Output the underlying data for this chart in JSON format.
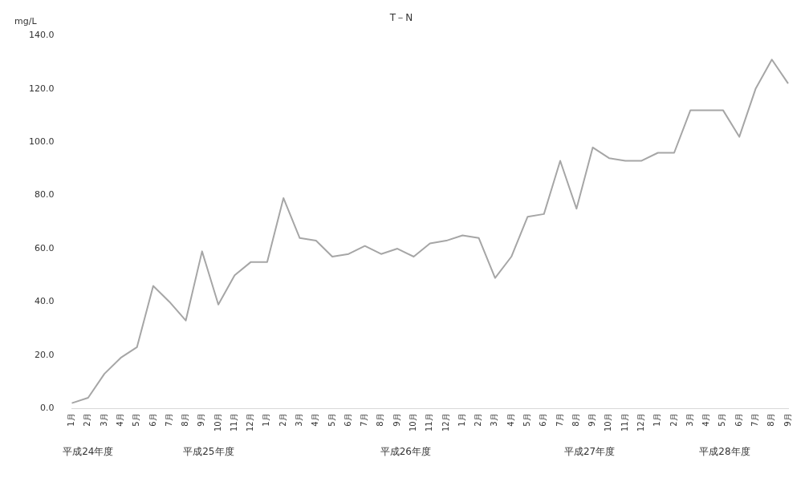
{
  "chart_data": {
    "type": "line",
    "title": "T－N",
    "ylabel": "mg/L",
    "categories": [
      "1月",
      "2月",
      "3月",
      "4月",
      "5月",
      "6月",
      "7月",
      "8月",
      "9月",
      "10月",
      "11月",
      "12月",
      "1月",
      "2月",
      "3月",
      "4月",
      "5月",
      "6月",
      "7月",
      "8月",
      "9月",
      "10月",
      "11月",
      "12月",
      "1月",
      "2月",
      "3月",
      "4月",
      "5月",
      "6月",
      "7月",
      "8月",
      "9月",
      "10月",
      "11月",
      "12月",
      "1月",
      "2月",
      "3月",
      "4月",
      "5月",
      "6月",
      "7月",
      "8月",
      "9月"
    ],
    "series": [
      {
        "color": "#a6a6a6",
        "values": [
          2,
          4,
          13,
          19,
          23,
          46,
          40,
          33,
          59,
          39,
          50,
          55,
          55,
          79,
          64,
          63,
          57,
          58,
          61,
          58,
          60,
          57,
          62,
          63,
          65,
          64,
          49,
          57,
          72,
          73,
          93,
          75,
          98,
          94,
          93,
          93,
          96,
          96,
          112,
          112,
          112,
          102,
          120,
          131,
          122
        ]
      }
    ],
    "ylim": [
      0,
      140
    ],
    "yticks": [
      {
        "value": 0,
        "label": "0.0"
      },
      {
        "value": 20,
        "label": "20.0"
      },
      {
        "value": 40,
        "label": "40.0"
      },
      {
        "value": 60,
        "label": "60.0"
      },
      {
        "value": 80,
        "label": "80.0"
      },
      {
        "value": 100,
        "label": "100.0"
      },
      {
        "value": 120,
        "label": "120.0"
      },
      {
        "value": 140,
        "label": "140.0"
      }
    ],
    "annotations": [
      "平成24年度",
      "平成25年度",
      "平成26年度",
      "平成27年度",
      "平成28年度"
    ],
    "grid": false,
    "legend": false,
    "marker": "none",
    "line_style": "solid"
  }
}
